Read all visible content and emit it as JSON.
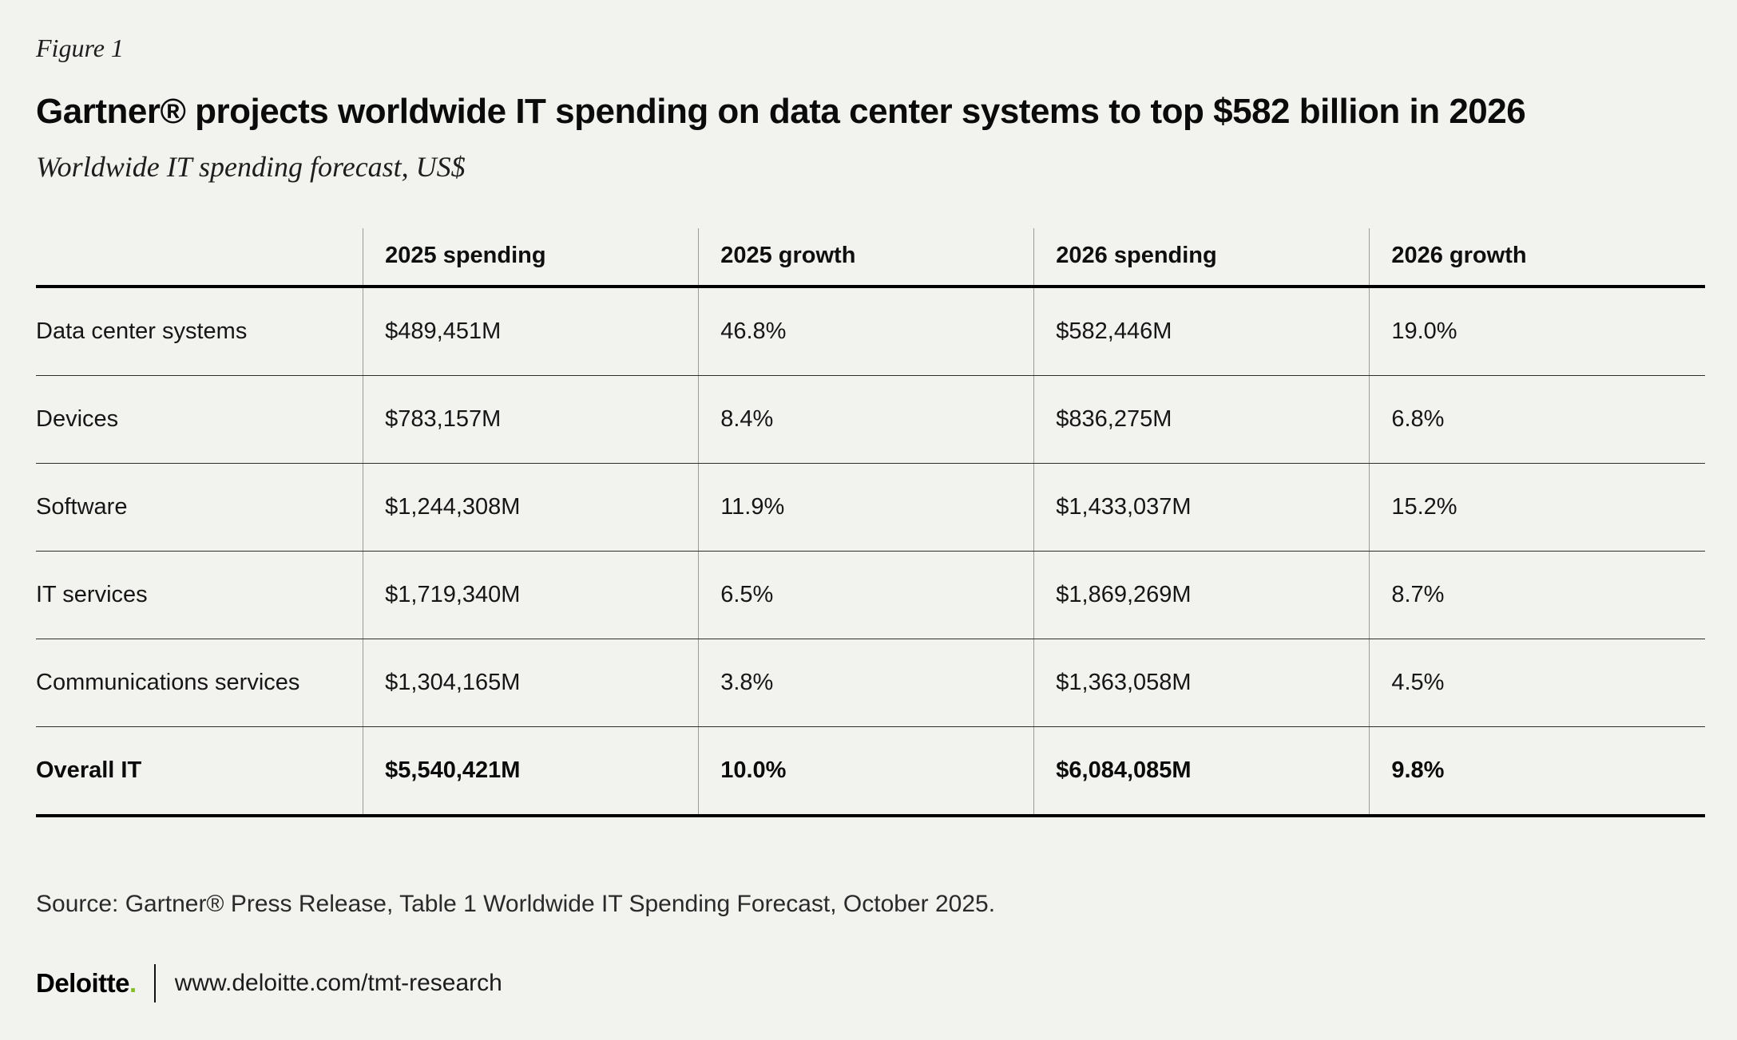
{
  "figure": {
    "label": "Figure 1",
    "title": "Gartner® projects worldwide IT spending on data center systems to top $582 billion in 2026",
    "subtitle": "Worldwide IT spending forecast, US$"
  },
  "chart_data": {
    "type": "table",
    "columns": [
      "",
      "2025 spending",
      "2025 growth",
      "2026 spending",
      "2026 growth"
    ],
    "rows": [
      {
        "label": "Data center systems",
        "values": [
          "$489,451M",
          "46.8%",
          "$582,446M",
          "19.0%"
        ],
        "bold": false
      },
      {
        "label": "Devices",
        "values": [
          "$783,157M",
          "8.4%",
          "$836,275M",
          "6.8%"
        ],
        "bold": false
      },
      {
        "label": "Software",
        "values": [
          "$1,244,308M",
          "11.9%",
          "$1,433,037M",
          "15.2%"
        ],
        "bold": false
      },
      {
        "label": "IT services",
        "values": [
          "$1,719,340M",
          "6.5%",
          "$1,869,269M",
          "8.7%"
        ],
        "bold": false
      },
      {
        "label": "Communications services",
        "values": [
          "$1,304,165M",
          "3.8%",
          "$1,363,058M",
          "4.5%"
        ],
        "bold": false
      },
      {
        "label": "Overall IT",
        "values": [
          "$5,540,421M",
          "10.0%",
          "$6,084,085M",
          "9.8%"
        ],
        "bold": true
      }
    ],
    "title": "Gartner projects worldwide IT spending on data center systems to top $582 billion in 2026",
    "units": "US$ millions"
  },
  "source": "Source: Gartner® Press Release, Table 1 Worldwide IT Spending Forecast, October 2025.",
  "footer": {
    "brand": "Deloitte",
    "brand_dot": ".",
    "url": "www.deloitte.com/tmt-research"
  },
  "colors": {
    "accent_green": "#86BC25",
    "background": "#F2F2EE",
    "rule_thick": "#000000",
    "rule_thin": "#2E2E2E",
    "rule_vertical": "#9A9A9A"
  }
}
